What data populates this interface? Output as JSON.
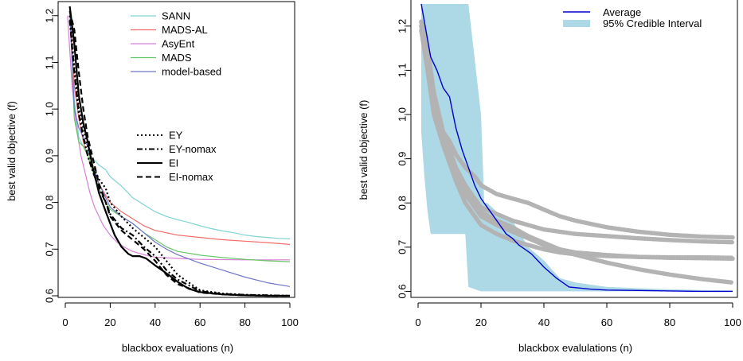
{
  "chart_data": [
    {
      "type": "line",
      "title": "",
      "xlabel": "blackbox evaluations (n)",
      "ylabel": "best valid objective (f)",
      "xlim": [
        0,
        100
      ],
      "ylim": [
        0.6,
        1.22
      ],
      "xticks": [
        0,
        20,
        40,
        60,
        80,
        100
      ],
      "yticks": [
        0.6,
        0.7,
        0.8,
        0.9,
        1.0,
        1.1,
        1.2
      ],
      "xtick_labels": [
        "0",
        "20",
        "40",
        "60",
        "80",
        "100"
      ],
      "ytick_labels": [
        "0.6",
        "0.7",
        "0.8",
        "0.9",
        "1.0",
        "1.1",
        "1.2"
      ],
      "grid": false,
      "legend_position": "top-center",
      "series": [
        {
          "name": "SANN",
          "color": "#7fd3d3",
          "style": "solid",
          "x": [
            2,
            4,
            6,
            8,
            10,
            12,
            15,
            18,
            20,
            25,
            30,
            35,
            40,
            45,
            50,
            55,
            60,
            65,
            70,
            75,
            80,
            85,
            90,
            95,
            100
          ],
          "y": [
            1.22,
            1.02,
            0.94,
            0.92,
            0.91,
            0.895,
            0.88,
            0.87,
            0.855,
            0.835,
            0.81,
            0.795,
            0.78,
            0.77,
            0.763,
            0.757,
            0.75,
            0.744,
            0.739,
            0.735,
            0.73,
            0.727,
            0.725,
            0.723,
            0.722
          ]
        },
        {
          "name": "MADS-AL",
          "color": "#f26a6a",
          "style": "solid",
          "x": [
            2,
            4,
            6,
            8,
            10,
            12,
            15,
            18,
            20,
            25,
            30,
            35,
            40,
            45,
            50,
            60,
            70,
            80,
            90,
            100
          ],
          "y": [
            1.21,
            1.05,
            0.98,
            0.93,
            0.9,
            0.87,
            0.84,
            0.815,
            0.8,
            0.78,
            0.765,
            0.75,
            0.74,
            0.735,
            0.73,
            0.725,
            0.72,
            0.717,
            0.714,
            0.71
          ]
        },
        {
          "name": "AsyEnt",
          "color": "#d77fd7",
          "style": "solid",
          "x": [
            1,
            3,
            5,
            7,
            9,
            11,
            13,
            15,
            17,
            20,
            23,
            26,
            30,
            35,
            40,
            50,
            60,
            80,
            100
          ],
          "y": [
            1.2,
            1.05,
            0.96,
            0.9,
            0.86,
            0.82,
            0.79,
            0.77,
            0.75,
            0.73,
            0.715,
            0.705,
            0.695,
            0.688,
            0.683,
            0.68,
            0.678,
            0.677,
            0.677
          ]
        },
        {
          "name": "MADS",
          "color": "#66c566",
          "style": "solid",
          "x": [
            2,
            4,
            6,
            8,
            10,
            12,
            15,
            18,
            20,
            25,
            30,
            35,
            40,
            45,
            50,
            60,
            70,
            80,
            90,
            100
          ],
          "y": [
            1.22,
            0.98,
            0.93,
            0.92,
            0.9,
            0.87,
            0.83,
            0.8,
            0.785,
            0.77,
            0.755,
            0.735,
            0.72,
            0.705,
            0.695,
            0.687,
            0.682,
            0.678,
            0.675,
            0.673
          ]
        },
        {
          "name": "model-based",
          "color": "#6f77c6",
          "style": "solid",
          "x": [
            2,
            4,
            6,
            8,
            10,
            12,
            15,
            18,
            20,
            25,
            30,
            35,
            40,
            45,
            50,
            60,
            70,
            80,
            90,
            100
          ],
          "y": [
            1.21,
            1.0,
            0.96,
            0.94,
            0.92,
            0.88,
            0.84,
            0.81,
            0.79,
            0.77,
            0.755,
            0.735,
            0.715,
            0.7,
            0.688,
            0.67,
            0.655,
            0.64,
            0.628,
            0.62
          ]
        },
        {
          "name": "EY",
          "color": "#000000",
          "style": "dotted",
          "x": [
            2,
            4,
            6,
            8,
            10,
            12,
            15,
            18,
            20,
            25,
            30,
            35,
            40,
            45,
            50,
            60,
            70,
            80,
            90,
            100
          ],
          "y": [
            1.2,
            1.09,
            1.0,
            0.96,
            0.92,
            0.88,
            0.85,
            0.83,
            0.8,
            0.77,
            0.745,
            0.725,
            0.705,
            0.675,
            0.645,
            0.612,
            0.605,
            0.602,
            0.601,
            0.6
          ]
        },
        {
          "name": "EY-nomax",
          "color": "#000000",
          "style": "dashdot",
          "x": [
            2,
            4,
            6,
            8,
            10,
            12,
            15,
            18,
            20,
            25,
            30,
            35,
            40,
            45,
            50,
            60,
            70,
            80,
            90,
            100
          ],
          "y": [
            1.19,
            1.08,
            0.99,
            0.94,
            0.9,
            0.87,
            0.83,
            0.8,
            0.775,
            0.745,
            0.73,
            0.705,
            0.685,
            0.655,
            0.635,
            0.61,
            0.604,
            0.602,
            0.601,
            0.6
          ]
        },
        {
          "name": "EI",
          "color": "#000000",
          "style": "solid",
          "x": [
            2,
            4,
            6,
            8,
            10,
            12,
            15,
            18,
            20,
            22,
            25,
            28,
            30,
            33,
            36,
            40,
            43,
            46,
            50,
            55,
            60,
            70,
            80,
            90,
            100
          ],
          "y": [
            1.22,
            1.14,
            1.03,
            0.97,
            0.93,
            0.88,
            0.82,
            0.78,
            0.755,
            0.73,
            0.705,
            0.69,
            0.685,
            0.685,
            0.68,
            0.665,
            0.655,
            0.645,
            0.63,
            0.615,
            0.608,
            0.603,
            0.601,
            0.6,
            0.6
          ]
        },
        {
          "name": "EI-nomax",
          "color": "#000000",
          "style": "dashed",
          "x": [
            2,
            4,
            6,
            8,
            10,
            12,
            15,
            18,
            20,
            25,
            30,
            35,
            40,
            45,
            50,
            60,
            70,
            80,
            90,
            100
          ],
          "y": [
            1.21,
            1.17,
            1.08,
            1.0,
            0.94,
            0.9,
            0.84,
            0.8,
            0.77,
            0.74,
            0.72,
            0.7,
            0.675,
            0.645,
            0.625,
            0.607,
            0.603,
            0.601,
            0.6,
            0.6
          ]
        }
      ],
      "legend_top": [
        "SANN",
        "MADS-AL",
        "AsyEnt",
        "MADS",
        "model-based"
      ],
      "legend_bottom": [
        "EY",
        "EY-nomax",
        "EI",
        "EI-nomax"
      ]
    },
    {
      "type": "area",
      "title": "",
      "xlabel": "blackbox evalulations (n)",
      "ylabel": "best valid objective (f)",
      "xlim": [
        0,
        100
      ],
      "ylim": [
        0.59,
        1.25
      ],
      "xticks": [
        0,
        20,
        40,
        60,
        80,
        100
      ],
      "yticks": [
        0.6,
        0.7,
        0.8,
        0.9,
        1.0,
        1.1,
        1.2
      ],
      "xtick_labels": [
        "0",
        "20",
        "40",
        "60",
        "80",
        "100"
      ],
      "ytick_labels": [
        "0.6",
        "0.7",
        "0.8",
        "0.9",
        "1.0",
        "1.1",
        "1.2"
      ],
      "grid": false,
      "legend_position": "top-right",
      "legend": [
        "Average",
        "95% Credible Interval"
      ],
      "average": {
        "name": "Average",
        "color": "#0000cc",
        "x": [
          1,
          2,
          4,
          6,
          8,
          10,
          12,
          14,
          16,
          18,
          20,
          22,
          24,
          26,
          28,
          30,
          32,
          34,
          36,
          38,
          40,
          44,
          48,
          55,
          60,
          70,
          80,
          90,
          100
        ],
        "y": [
          1.25,
          1.21,
          1.13,
          1.1,
          1.06,
          1.04,
          0.97,
          0.92,
          0.88,
          0.84,
          0.81,
          0.79,
          0.77,
          0.75,
          0.73,
          0.72,
          0.705,
          0.695,
          0.685,
          0.67,
          0.655,
          0.63,
          0.61,
          0.605,
          0.603,
          0.602,
          0.601,
          0.6,
          0.6
        ]
      },
      "interval": {
        "name": "95% Credible Interval",
        "color": "#add8e6",
        "x": [
          1,
          2,
          3,
          4,
          5,
          6,
          10,
          15,
          16,
          20,
          21,
          22,
          25,
          30,
          35,
          40,
          45,
          50,
          60,
          70,
          80,
          90,
          100
        ],
        "upper": [
          1.25,
          1.25,
          1.25,
          1.25,
          1.25,
          1.25,
          1.25,
          1.25,
          1.25,
          1.0,
          0.8,
          0.8,
          0.78,
          0.76,
          0.7,
          0.67,
          0.63,
          0.62,
          0.61,
          0.607,
          0.605,
          0.603,
          0.602
        ],
        "lower": [
          0.96,
          0.86,
          0.78,
          0.73,
          0.73,
          0.73,
          0.73,
          0.73,
          0.61,
          0.6,
          0.6,
          0.6,
          0.6,
          0.6,
          0.6,
          0.6,
          0.6,
          0.6,
          0.6,
          0.6,
          0.6,
          0.6,
          0.6
        ]
      },
      "samples": [
        {
          "color": "#b3b3b3",
          "x": [
            1,
            3,
            5,
            8,
            10,
            12,
            15,
            18,
            20,
            25,
            30,
            35,
            40,
            45,
            50,
            60,
            70,
            80,
            90,
            100
          ],
          "y": [
            1.21,
            1.15,
            1.05,
            0.96,
            0.94,
            0.91,
            0.88,
            0.86,
            0.84,
            0.82,
            0.81,
            0.8,
            0.785,
            0.77,
            0.76,
            0.745,
            0.735,
            0.728,
            0.724,
            0.722
          ]
        },
        {
          "color": "#b3b3b3",
          "x": [
            1,
            3,
            5,
            8,
            10,
            12,
            15,
            18,
            20,
            25,
            30,
            35,
            40,
            45,
            50,
            60,
            70,
            80,
            90,
            100
          ],
          "y": [
            1.2,
            1.12,
            1.02,
            0.95,
            0.92,
            0.88,
            0.84,
            0.81,
            0.79,
            0.775,
            0.76,
            0.75,
            0.74,
            0.735,
            0.73,
            0.725,
            0.72,
            0.716,
            0.713,
            0.711
          ]
        },
        {
          "color": "#b3b3b3",
          "x": [
            1,
            3,
            5,
            8,
            10,
            12,
            15,
            18,
            20,
            25,
            30,
            35,
            40,
            45,
            50,
            60,
            70,
            80,
            90,
            100
          ],
          "y": [
            1.19,
            1.1,
            1.0,
            0.93,
            0.89,
            0.85,
            0.8,
            0.77,
            0.75,
            0.73,
            0.715,
            0.705,
            0.695,
            0.688,
            0.684,
            0.68,
            0.678,
            0.677,
            0.677,
            0.676
          ]
        },
        {
          "color": "#b3b3b3",
          "x": [
            1,
            3,
            5,
            8,
            10,
            12,
            15,
            18,
            20,
            25,
            30,
            35,
            40,
            45,
            50,
            60,
            70,
            80,
            90,
            100
          ],
          "y": [
            1.2,
            1.11,
            1.01,
            0.94,
            0.9,
            0.86,
            0.82,
            0.79,
            0.77,
            0.75,
            0.735,
            0.72,
            0.705,
            0.695,
            0.688,
            0.682,
            0.678,
            0.676,
            0.675,
            0.674
          ]
        },
        {
          "color": "#b3b3b3",
          "x": [
            1,
            3,
            5,
            8,
            10,
            12,
            15,
            18,
            20,
            25,
            30,
            35,
            40,
            45,
            50,
            60,
            70,
            80,
            90,
            100
          ],
          "y": [
            1.21,
            1.13,
            1.03,
            0.95,
            0.91,
            0.87,
            0.83,
            0.8,
            0.78,
            0.76,
            0.745,
            0.725,
            0.71,
            0.695,
            0.683,
            0.665,
            0.65,
            0.638,
            0.628,
            0.62
          ]
        }
      ]
    }
  ]
}
